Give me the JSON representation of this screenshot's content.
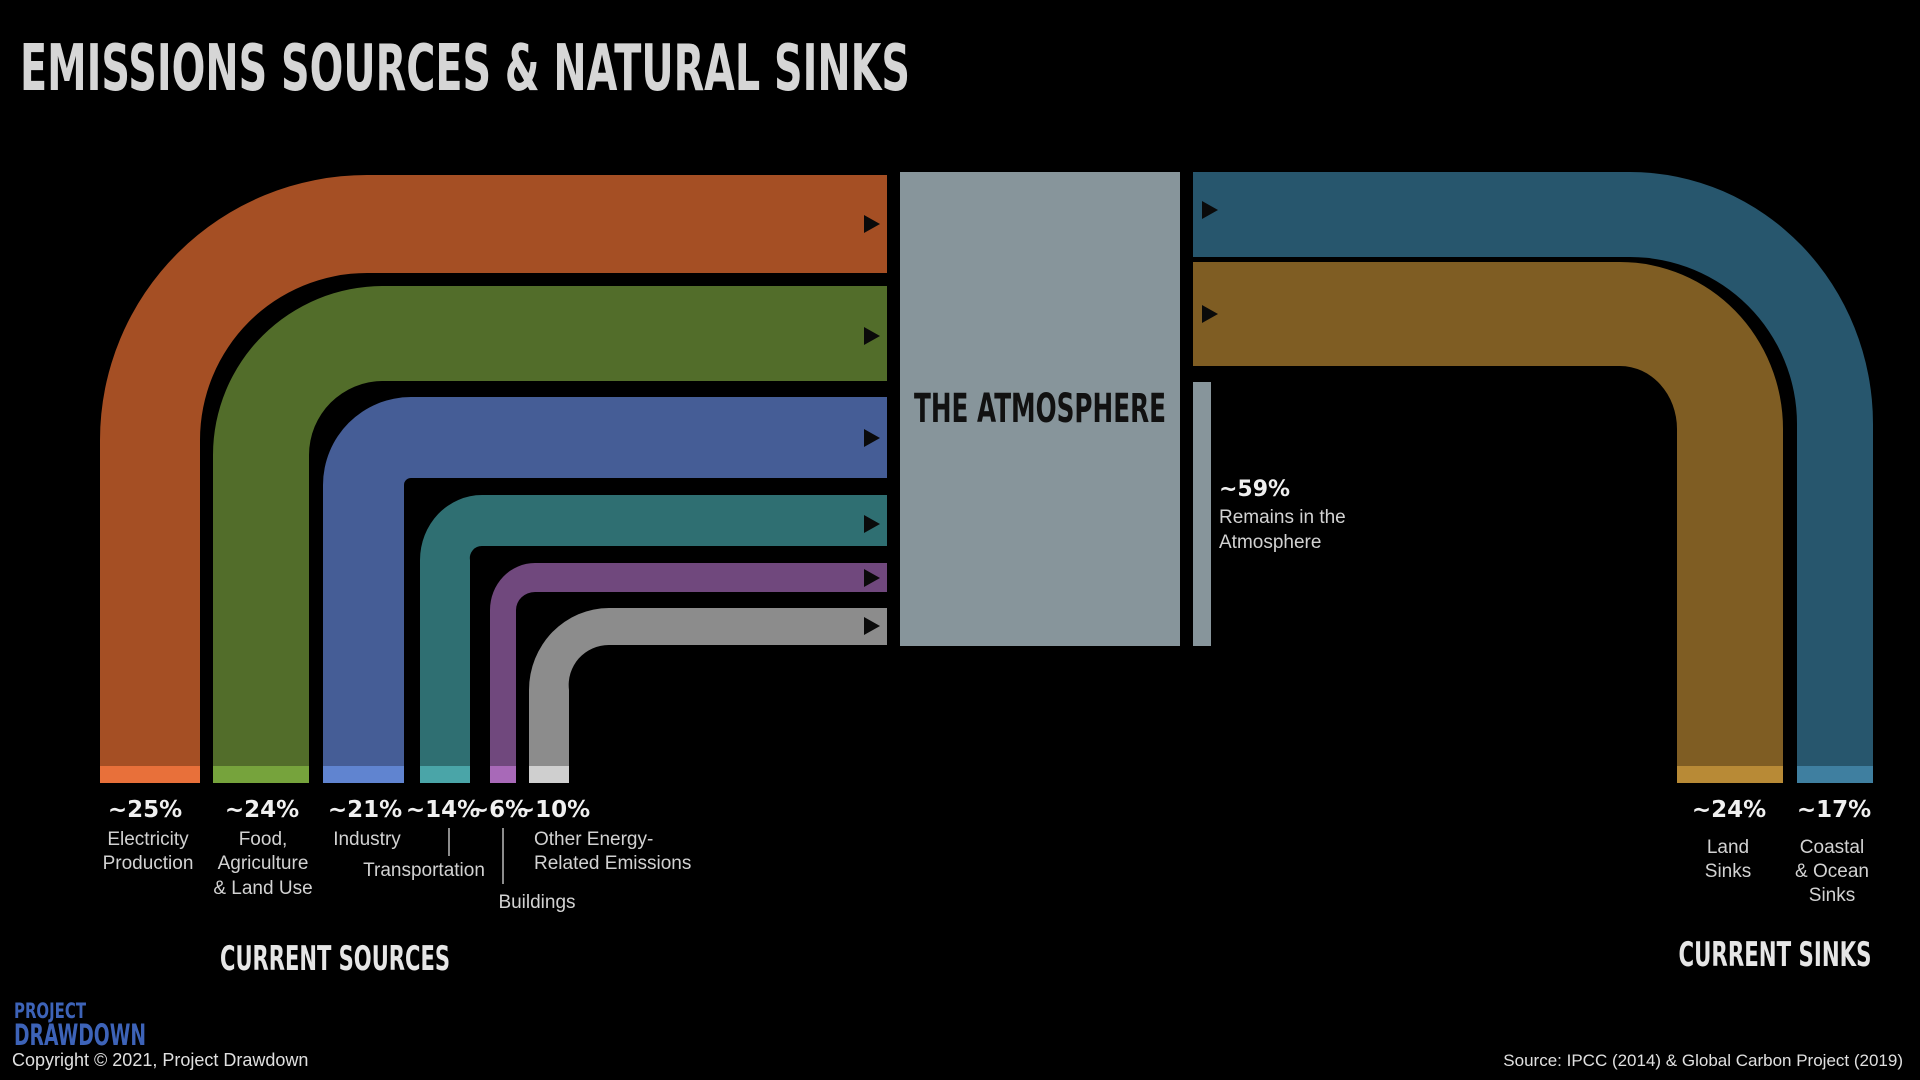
{
  "title": "EMISSIONS SOURCES & NATURAL SINKS",
  "atmosphere": {
    "label": "THE ATMOSPHERE",
    "color": "#87959b"
  },
  "remains": {
    "pct": "~59%",
    "line1": "Remains in the",
    "line2": "Atmosphere"
  },
  "sources": [
    {
      "pct": "~25%",
      "line1": "Electricity",
      "line2": "Production",
      "line3": "",
      "color": "#a54f24",
      "tip": "#e8703a"
    },
    {
      "pct": "~24%",
      "line1": "Food,",
      "line2": "Agriculture",
      "line3": "& Land Use",
      "color": "#526d2a",
      "tip": "#76a33c"
    },
    {
      "pct": "~21%",
      "line1": "Industry",
      "line2": "",
      "line3": "",
      "color": "#455d96",
      "tip": "#6084d0"
    },
    {
      "pct": "~14%",
      "line1": "Transportation",
      "line2": "",
      "line3": "",
      "color": "#2f6f72",
      "tip": "#4aa5a8"
    },
    {
      "pct": "~6%",
      "line1": "Buildings",
      "line2": "",
      "line3": "",
      "color": "#70487d",
      "tip": "#a869b8"
    },
    {
      "pct": "~10%",
      "line1": "Other Energy-",
      "line2": "Related Emissions",
      "line3": "",
      "color": "#8c8c8c",
      "tip": "#cfcfcf"
    }
  ],
  "sinks": [
    {
      "pct": "~24%",
      "line1": "Land",
      "line2": "Sinks",
      "line3": "",
      "color": "#7f5d23",
      "tip": "#b88a36"
    },
    {
      "pct": "~17%",
      "line1": "Coastal",
      "line2": "& Ocean",
      "line3": "Sinks",
      "color": "#27566d",
      "tip": "#3f7fa0"
    }
  ],
  "current_sources": "CURRENT SOURCES",
  "current_sinks": "CURRENT SINKS",
  "logo": {
    "line1": "PROJECT",
    "line2": "DRAWDOWN",
    "color": "#3d63b8"
  },
  "copyright": "Copyright © 2021, Project Drawdown",
  "source": "Source: IPCC (2014) & Global Carbon Project (2019)"
}
